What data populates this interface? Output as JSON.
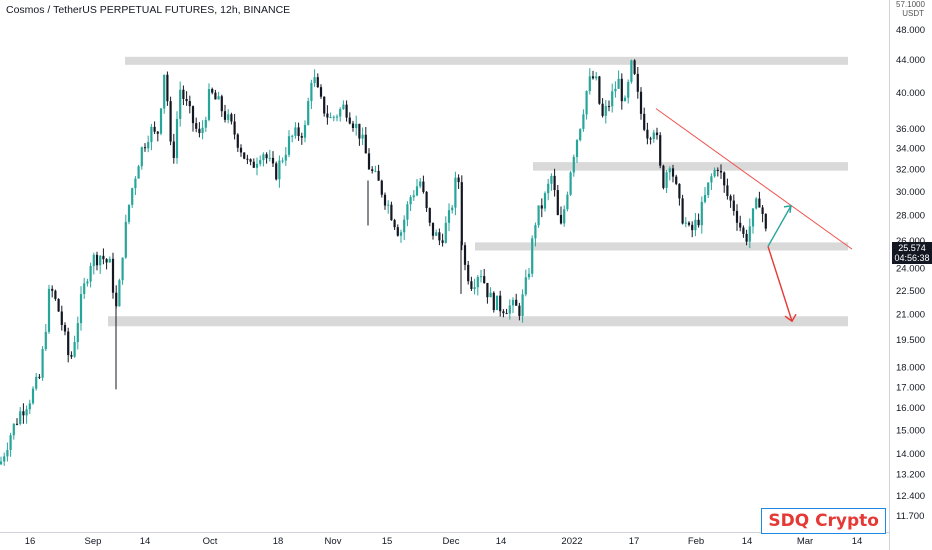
{
  "header": {
    "title": "Cosmos / TetherUS PERPETUAL FUTURES, 12h, BINANCE"
  },
  "axis": {
    "unit_top": "57.1000",
    "unit": "USDT"
  },
  "watermark": {
    "label": "SDQ Crypto"
  },
  "last_price": {
    "value": "25.574",
    "countdown": "04:56:38"
  },
  "colors": {
    "up": "#26a69a",
    "down": "#131722",
    "zone": "#d9d9d9",
    "trendline": "#ef5350",
    "arrow_up": "#26a69a",
    "arrow_down": "#e53935"
  },
  "chart_data": {
    "type": "candlestick",
    "title": "Cosmos / TetherUS PERPETUAL FUTURES, 12h, BINANCE",
    "ylabel": "USDT",
    "yscale": "log",
    "ylim": [
      11.2,
      50.5
    ],
    "y_ticks": [
      48.0,
      44.0,
      40.0,
      36.0,
      34.0,
      32.0,
      30.0,
      28.0,
      26.0,
      24.0,
      22.5,
      21.0,
      19.5,
      18.0,
      17.0,
      16.0,
      15.0,
      14.0,
      13.2,
      12.4,
      11.7
    ],
    "y_tick_labels": [
      "48.000",
      "44.000",
      "40.000",
      "36.000",
      "34.000",
      "32.000",
      "30.000",
      "28.000",
      "26.000",
      "24.000",
      "22.500",
      "21.000",
      "19.500",
      "18.000",
      "17.000",
      "16.000",
      "15.000",
      "14.000",
      "13.200",
      "12.400",
      "11.700"
    ],
    "x_ticks": [
      "16",
      "Sep",
      "14",
      "Oct",
      "18",
      "Nov",
      "15",
      "Dec",
      "14",
      "2022",
      "17",
      "Feb",
      "14",
      "Mar",
      "14"
    ],
    "price_path": [
      [
        0,
        13.6
      ],
      [
        10,
        14.8
      ],
      [
        20,
        15.8
      ],
      [
        30,
        16.5
      ],
      [
        40,
        17.5
      ],
      [
        50,
        22.8
      ],
      [
        60,
        21.0
      ],
      [
        70,
        18.2
      ],
      [
        80,
        21.5
      ],
      [
        90,
        24.5
      ],
      [
        100,
        25.0
      ],
      [
        110,
        24.2
      ],
      [
        117,
        21.0
      ],
      [
        122,
        25.0
      ],
      [
        130,
        29.5
      ],
      [
        140,
        33.5
      ],
      [
        150,
        36.0
      ],
      [
        157,
        35.0
      ],
      [
        165,
        43.5
      ],
      [
        172,
        32.0
      ],
      [
        180,
        40.5
      ],
      [
        190,
        37.5
      ],
      [
        200,
        35.0
      ],
      [
        210,
        40.0
      ],
      [
        220,
        38.5
      ],
      [
        235,
        35.5
      ],
      [
        250,
        32.0
      ],
      [
        262,
        34.0
      ],
      [
        275,
        31.5
      ],
      [
        290,
        35.0
      ],
      [
        305,
        36.0
      ],
      [
        312,
        42.5
      ],
      [
        320,
        39.0
      ],
      [
        330,
        37.0
      ],
      [
        345,
        38.5
      ],
      [
        360,
        35.5
      ],
      [
        370,
        32.0
      ],
      [
        380,
        30.5
      ],
      [
        390,
        28.5
      ],
      [
        400,
        26.5
      ],
      [
        410,
        29.5
      ],
      [
        420,
        31.0
      ],
      [
        430,
        27.0
      ],
      [
        440,
        26.0
      ],
      [
        450,
        28.0
      ],
      [
        458,
        32.0
      ],
      [
        463,
        24.5
      ],
      [
        472,
        23.0
      ],
      [
        480,
        24.0
      ],
      [
        490,
        22.0
      ],
      [
        500,
        21.5
      ],
      [
        510,
        21.5
      ],
      [
        520,
        21.3
      ],
      [
        528,
        23.5
      ],
      [
        535,
        27.5
      ],
      [
        545,
        29.5
      ],
      [
        552,
        31.5
      ],
      [
        560,
        26.5
      ],
      [
        566,
        29.5
      ],
      [
        572,
        33.0
      ],
      [
        580,
        36.5
      ],
      [
        588,
        41.0
      ],
      [
        595,
        42.0
      ],
      [
        602,
        37.0
      ],
      [
        610,
        39.0
      ],
      [
        618,
        41.5
      ],
      [
        625,
        38.5
      ],
      [
        632,
        43.5
      ],
      [
        640,
        38.0
      ],
      [
        648,
        35.5
      ],
      [
        655,
        36.5
      ],
      [
        662,
        30.5
      ],
      [
        670,
        33.0
      ],
      [
        680,
        28.5
      ],
      [
        690,
        26.5
      ],
      [
        700,
        28.0
      ],
      [
        710,
        31.0
      ],
      [
        718,
        32.5
      ],
      [
        725,
        30.0
      ],
      [
        735,
        28.5
      ],
      [
        745,
        26.0
      ],
      [
        755,
        28.5
      ],
      [
        760,
        29.5
      ],
      [
        768,
        25.6
      ]
    ],
    "zones": [
      {
        "low": 43.6,
        "high": 44.4
      },
      {
        "low": 31.9,
        "high": 32.7
      },
      {
        "low": 25.3,
        "high": 25.9
      },
      {
        "low": 20.3,
        "high": 20.9
      }
    ],
    "trendline": {
      "from": 38.2,
      "to": 25.4
    },
    "projection_up": {
      "from": 25.6,
      "to": 28.8
    },
    "projection_down": {
      "from": 25.6,
      "to": 20.6
    },
    "last_value": 25.574
  }
}
